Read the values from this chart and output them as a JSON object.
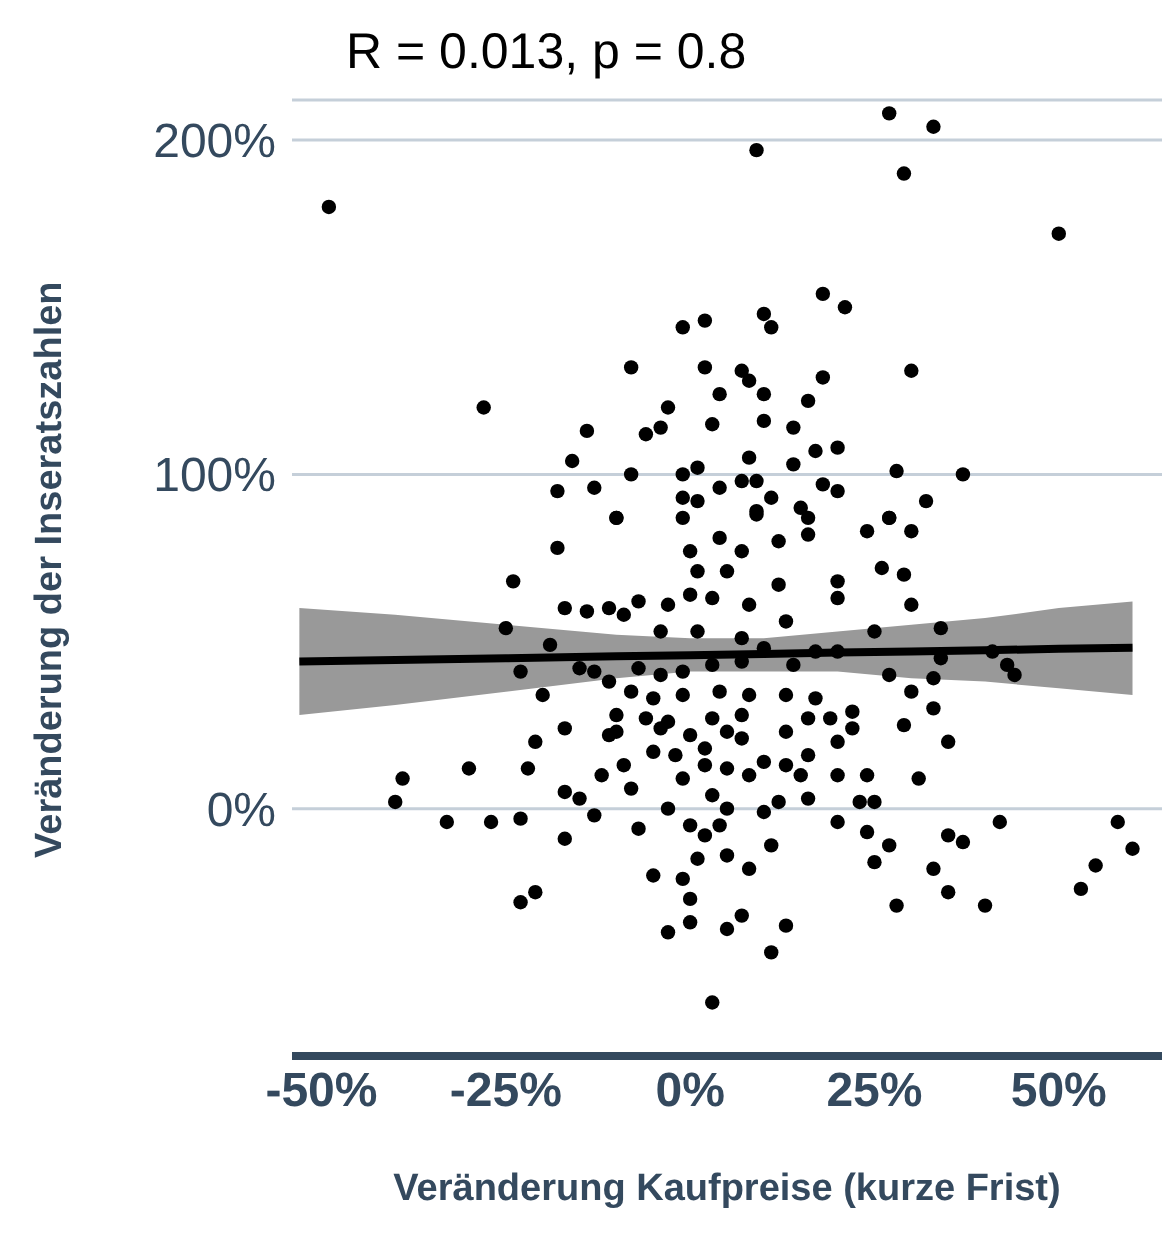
{
  "chart_data": {
    "type": "scatter",
    "xlabel": "Veränderung Kaufpreise (kurze Frist)",
    "ylabel": "Veränderung der Inseratszahlen",
    "annotations": [
      "R = 0.013, p = 0.8"
    ],
    "xlim": [
      -54,
      64
    ],
    "ylim": [
      -74,
      212
    ],
    "xticks": [
      {
        "value": -50,
        "label": "-50%"
      },
      {
        "value": -25,
        "label": "-25%"
      },
      {
        "value": 0,
        "label": "0%"
      },
      {
        "value": 25,
        "label": "25%"
      },
      {
        "value": 50,
        "label": "50%"
      }
    ],
    "yticks": [
      {
        "value": 0,
        "label": "0%"
      },
      {
        "value": 100,
        "label": "100%"
      },
      {
        "value": 200,
        "label": "200%"
      }
    ],
    "grid": "y",
    "series": [
      {
        "color": "#000000",
        "marker": "circle",
        "x": [
          27,
          33,
          9,
          29,
          -49,
          50,
          18,
          21,
          -1,
          2,
          10,
          11,
          -8,
          2,
          7,
          8,
          18,
          30,
          -28,
          4,
          10,
          16,
          -3,
          -14,
          -6,
          -4,
          3,
          10,
          14,
          -16,
          -8,
          -1,
          1,
          8,
          17,
          20,
          14,
          28,
          37,
          -18,
          -13,
          -10,
          -1,
          1,
          4,
          7,
          9,
          11,
          9,
          18,
          20,
          27,
          32,
          15,
          -10,
          -1,
          9,
          16,
          24,
          27,
          30,
          -18,
          0,
          4,
          7,
          12,
          16,
          -24,
          1,
          5,
          12,
          20,
          26,
          29,
          20,
          30,
          -17,
          -14,
          -11,
          -9,
          -7,
          -3,
          0,
          3,
          8,
          13,
          -25,
          25,
          34,
          -19,
          -4,
          1,
          7,
          10,
          17,
          20,
          41,
          34,
          -23,
          -15,
          -13,
          -7,
          -4,
          -1,
          3,
          7,
          14,
          43,
          44,
          27,
          33,
          -11,
          -8,
          -5,
          -1,
          4,
          8,
          13,
          17,
          -20,
          30,
          33,
          -10,
          -6,
          -3,
          3,
          7,
          16,
          19,
          22,
          29,
          -17,
          -10,
          -4,
          0,
          5,
          13,
          22,
          -21,
          -11,
          20,
          35,
          -5,
          -2,
          2,
          7,
          10,
          16,
          -30,
          -22,
          -9,
          2,
          5,
          13,
          -39,
          -12,
          -1,
          8,
          15,
          20,
          24,
          31,
          -40,
          -17,
          -15,
          -8,
          3,
          12,
          16,
          23,
          25,
          -3,
          5,
          10,
          -33,
          -27,
          -23,
          -13,
          0,
          20,
          42,
          58,
          -17,
          -7,
          2,
          4,
          11,
          24,
          27,
          35,
          37,
          60,
          1,
          5,
          8,
          25,
          -5,
          -1,
          33,
          55,
          -21,
          -23,
          0,
          35,
          53,
          28,
          40,
          0,
          -3,
          7,
          5,
          13,
          11,
          3
        ],
        "values": [
          208,
          204,
          197,
          190,
          180,
          172,
          154,
          150,
          144,
          146,
          148,
          144,
          132,
          132,
          131,
          128,
          129,
          131,
          120,
          124,
          124,
          122,
          120,
          113,
          112,
          114,
          115,
          116,
          114,
          104,
          100,
          100,
          102,
          105,
          107,
          108,
          103,
          101,
          100,
          95,
          96,
          87,
          93,
          92,
          96,
          98,
          98,
          93,
          89,
          97,
          95,
          87,
          92,
          90,
          87,
          87,
          88,
          87,
          83,
          87,
          83,
          78,
          77,
          81,
          77,
          80,
          82,
          68,
          71,
          71,
          67,
          68,
          72,
          70,
          63,
          61,
          60,
          59,
          60,
          58,
          62,
          61,
          64,
          63,
          61,
          56,
          54,
          53,
          54,
          49,
          53,
          53,
          51,
          48,
          47,
          47,
          47,
          45,
          41,
          42,
          41,
          42,
          40,
          41,
          43,
          44,
          43,
          43,
          40,
          40,
          39,
          38,
          35,
          33,
          34,
          35,
          34,
          34,
          33,
          34,
          35,
          30,
          28,
          27,
          26,
          27,
          28,
          27,
          27,
          29,
          25,
          24,
          23,
          24,
          22,
          23,
          23,
          24,
          20,
          22,
          20,
          20,
          17,
          16,
          18,
          21,
          14,
          16,
          12,
          12,
          13,
          13,
          12,
          13,
          9,
          10,
          9,
          10,
          10,
          10,
          10,
          9,
          2,
          5,
          3,
          6,
          4,
          2,
          3,
          2,
          2,
          0,
          0,
          -1,
          -4,
          -4,
          -3,
          -2,
          -5,
          -4,
          -4,
          -4,
          -9,
          -6,
          -8,
          -5,
          -11,
          -7,
          -11,
          -8,
          -10,
          -12,
          -15,
          -14,
          -18,
          -16,
          -20,
          -21,
          -18,
          -17,
          -25,
          -28,
          -27,
          -25,
          -24,
          -29,
          -29,
          -34,
          -37,
          -32,
          -36,
          -35,
          -43,
          -58
        ]
      },
      {
        "type": "line",
        "color": "#000000",
        "marker": "none",
        "x": [
          -53,
          -40,
          -25,
          -10,
          0,
          10,
          20,
          30,
          40,
          50,
          60
        ],
        "values": [
          44,
          44.5,
          45,
          45.6,
          45.9,
          46.3,
          46.7,
          47,
          47.4,
          47.8,
          48.1
        ],
        "lower": [
          28,
          31,
          35,
          39,
          41,
          41,
          41,
          39,
          38,
          36,
          34
        ],
        "upper": [
          60,
          58,
          55,
          52,
          51,
          51,
          53,
          55,
          57,
          60,
          62
        ]
      }
    ]
  }
}
